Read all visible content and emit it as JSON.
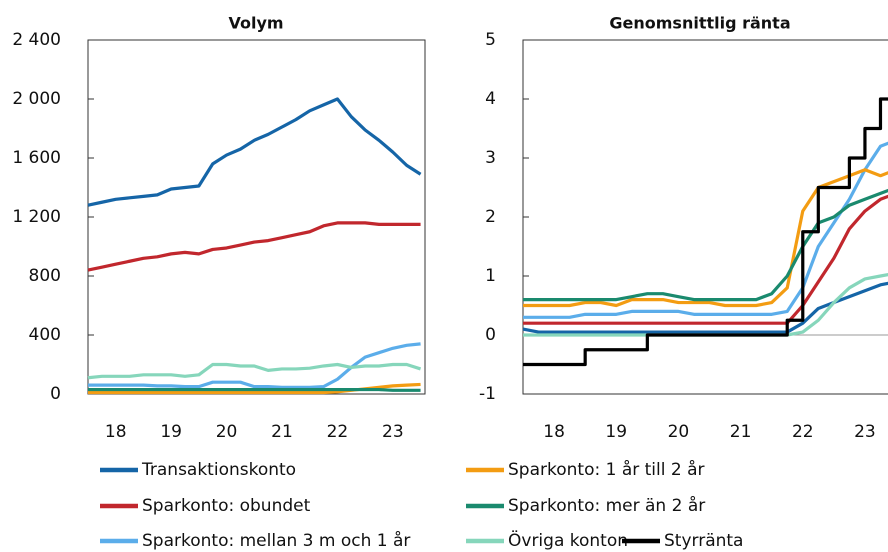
{
  "chart_data": [
    {
      "type": "line",
      "title": "Volym",
      "x": [
        17.5,
        17.75,
        18,
        18.25,
        18.5,
        18.75,
        19,
        19.25,
        19.5,
        19.75,
        20,
        20.25,
        20.5,
        20.75,
        21,
        21.25,
        21.5,
        21.75,
        22,
        22.25,
        22.5,
        22.75,
        23,
        23.25,
        23.5
      ],
      "xlim": [
        17.5,
        23.58
      ],
      "xticks": [
        18,
        19,
        20,
        21,
        22,
        23
      ],
      "ylim": [
        0,
        2400
      ],
      "yticks": [
        0,
        400,
        800,
        {
          "value": 1200,
          "label": "1 200"
        },
        {
          "value": 1600,
          "label": "1 600"
        },
        {
          "value": 2000,
          "label": "2 000"
        },
        {
          "value": 2400,
          "label": "2 400"
        }
      ],
      "series": [
        {
          "color": "#1565a7",
          "values": [
            1280,
            1300,
            1320,
            1330,
            1340,
            1350,
            1390,
            1400,
            1410,
            1560,
            1620,
            1660,
            1720,
            1760,
            1810,
            1860,
            1920,
            1960,
            2000,
            1880,
            1790,
            1720,
            1640,
            1550,
            1490
          ]
        },
        {
          "color": "#c1272d",
          "values": [
            840,
            860,
            880,
            900,
            920,
            930,
            950,
            960,
            950,
            980,
            990,
            1010,
            1030,
            1040,
            1060,
            1080,
            1100,
            1140,
            1160,
            1160,
            1160,
            1150,
            1150,
            1150,
            1150
          ]
        },
        {
          "color": "#5badea",
          "values": [
            60,
            60,
            60,
            60,
            60,
            55,
            55,
            50,
            50,
            80,
            80,
            80,
            50,
            50,
            45,
            45,
            45,
            50,
            100,
            180,
            250,
            280,
            310,
            330,
            340
          ]
        },
        {
          "color": "#f39c12",
          "values": [
            10,
            10,
            10,
            10,
            10,
            10,
            10,
            10,
            10,
            10,
            10,
            10,
            10,
            10,
            10,
            10,
            10,
            10,
            15,
            25,
            35,
            45,
            55,
            60,
            65
          ]
        },
        {
          "color": "#1a8a6e",
          "values": [
            30,
            30,
            30,
            30,
            30,
            30,
            30,
            30,
            30,
            30,
            30,
            30,
            30,
            30,
            30,
            30,
            30,
            30,
            30,
            30,
            30,
            30,
            25,
            25,
            25
          ]
        },
        {
          "color": "#86d6bb",
          "values": [
            110,
            120,
            120,
            120,
            130,
            130,
            130,
            120,
            130,
            200,
            200,
            190,
            190,
            160,
            170,
            170,
            175,
            190,
            200,
            180,
            190,
            190,
            200,
            200,
            170
          ]
        }
      ]
    },
    {
      "type": "line",
      "title": "Genomsnittlig ränta",
      "x": [
        17.5,
        17.75,
        18,
        18.25,
        18.5,
        18.75,
        19,
        19.25,
        19.5,
        19.75,
        20,
        20.25,
        20.5,
        20.75,
        21,
        21.25,
        21.5,
        21.75,
        22,
        22.25,
        22.5,
        22.75,
        23,
        23.25,
        23.5
      ],
      "xlim": [
        17.5,
        23.58
      ],
      "xticks": [
        18,
        19,
        20,
        21,
        22,
        23
      ],
      "ylim": [
        -1,
        5
      ],
      "yticks": [
        -1,
        0,
        1,
        2,
        3,
        4,
        5
      ],
      "series": [
        {
          "name": "Transaktionskonto",
          "color": "#1565a7",
          "values": [
            0.1,
            0.05,
            0.05,
            0.05,
            0.05,
            0.05,
            0.05,
            0.05,
            0.05,
            0.05,
            0.05,
            0.05,
            0.05,
            0.05,
            0.05,
            0.05,
            0.05,
            0.05,
            0.2,
            0.45,
            0.55,
            0.65,
            0.75,
            0.85,
            0.9
          ]
        },
        {
          "name": "Sparkonto: obundet",
          "color": "#c1272d",
          "values": [
            0.2,
            0.2,
            0.2,
            0.2,
            0.2,
            0.2,
            0.2,
            0.2,
            0.2,
            0.2,
            0.2,
            0.2,
            0.2,
            0.2,
            0.2,
            0.2,
            0.2,
            0.2,
            0.5,
            0.9,
            1.3,
            1.8,
            2.1,
            2.3,
            2.4
          ]
        },
        {
          "name": "Sparkonto: mellan 3 m och 1 år",
          "color": "#5badea",
          "values": [
            0.3,
            0.3,
            0.3,
            0.3,
            0.35,
            0.35,
            0.35,
            0.4,
            0.4,
            0.4,
            0.4,
            0.35,
            0.35,
            0.35,
            0.35,
            0.35,
            0.35,
            0.4,
            0.8,
            1.5,
            1.9,
            2.3,
            2.8,
            3.2,
            3.3
          ]
        },
        {
          "name": "Sparkonto: 1 år till 2 år",
          "color": "#f39c12",
          "values": [
            0.5,
            0.5,
            0.5,
            0.5,
            0.55,
            0.55,
            0.5,
            0.6,
            0.6,
            0.6,
            0.55,
            0.55,
            0.55,
            0.5,
            0.5,
            0.5,
            0.55,
            0.8,
            2.1,
            2.5,
            2.6,
            2.7,
            2.8,
            2.7,
            2.8
          ]
        },
        {
          "name": "Sparkonto: mer än 2 år",
          "color": "#1a8a6e",
          "values": [
            0.6,
            0.6,
            0.6,
            0.6,
            0.6,
            0.6,
            0.6,
            0.65,
            0.7,
            0.7,
            0.65,
            0.6,
            0.6,
            0.6,
            0.6,
            0.6,
            0.7,
            1.0,
            1.5,
            1.9,
            2.0,
            2.2,
            2.3,
            2.4,
            2.5
          ]
        },
        {
          "name": "Övriga konton",
          "color": "#86d6bb",
          "values": [
            0,
            0,
            0,
            0,
            0,
            0,
            0,
            0,
            0,
            0,
            0,
            0,
            0,
            0,
            0,
            0,
            0,
            0,
            0.05,
            0.25,
            0.55,
            0.8,
            0.95,
            1.0,
            1.05
          ]
        },
        {
          "name": "Styrränta",
          "color": "#000000",
          "step": true,
          "values": [
            -0.5,
            -0.5,
            -0.5,
            -0.5,
            -0.25,
            -0.25,
            -0.25,
            -0.25,
            0,
            0,
            0,
            0,
            0,
            0,
            0,
            0,
            0,
            0.25,
            1.75,
            2.5,
            2.5,
            3,
            3.5,
            4,
            4
          ]
        }
      ]
    }
  ]
}
